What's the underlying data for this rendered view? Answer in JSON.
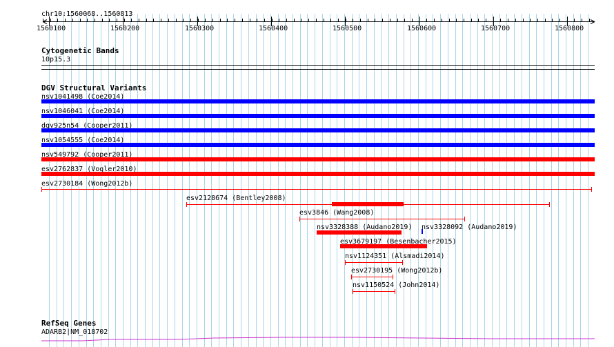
{
  "region_label": "chr10:1560068..1560813",
  "ruler": {
    "ticks": [
      "1560100",
      "1560200",
      "1560300",
      "1560400",
      "1560500",
      "1560600",
      "1560700",
      "1560800"
    ]
  },
  "cytoband": {
    "title": "Cytogenetic Bands",
    "band": "10p15.3"
  },
  "dgv": {
    "title": "DGV Structural Variants",
    "colors": {
      "gain": "#0000ff",
      "loss": "#ff0000"
    },
    "variants": [
      {
        "id": "nsv1041498 (Coe2014)",
        "type": "gain",
        "kind": "full",
        "row": 0
      },
      {
        "id": "nsv1046041 (Coe2014)",
        "type": "gain",
        "kind": "full",
        "row": 1
      },
      {
        "id": "dgv925n54 (Cooper2011)",
        "type": "gain",
        "kind": "full",
        "row": 2
      },
      {
        "id": "nsv1054555 (Coe2014)",
        "type": "gain",
        "kind": "full",
        "row": 3
      },
      {
        "id": "nsv549792 (Cooper2011)",
        "type": "loss",
        "kind": "full",
        "row": 4
      },
      {
        "id": "esv2762837 (Vogler2010)",
        "type": "loss",
        "kind": "full",
        "row": 5
      },
      {
        "id": "esv2730184 (Wong2012b)",
        "type": "loss",
        "kind": "range",
        "row": 6
      },
      {
        "id": "esv2128674 (Bentley2008)",
        "type": "loss",
        "kind": "range-core",
        "row": 7
      },
      {
        "id": "esv3846 (Wang2008)",
        "type": "loss",
        "kind": "range",
        "row": 8
      },
      {
        "id": "nsv3328388 (Audano2019)",
        "type": "loss",
        "kind": "thick",
        "row": 9
      },
      {
        "id": "nsv3328092 (Audano2019)",
        "type": "gain",
        "kind": "point",
        "row": 9
      },
      {
        "id": "esv3679197 (Besenbacher2015)",
        "type": "loss",
        "kind": "thick",
        "row": 10
      },
      {
        "id": "nsv1124351 (Alsmadi2014)",
        "type": "loss",
        "kind": "range",
        "row": 11
      },
      {
        "id": "esv2730195 (Wong2012b)",
        "type": "loss",
        "kind": "range",
        "row": 12
      },
      {
        "id": "nsv1150524 (John2014)",
        "type": "loss",
        "kind": "range",
        "row": 13
      }
    ]
  },
  "refseq": {
    "title": "RefSeq Genes",
    "gene": "ADARB2|NM_018702",
    "color": "#cc33cc"
  },
  "grid_color": "#aad4e8"
}
